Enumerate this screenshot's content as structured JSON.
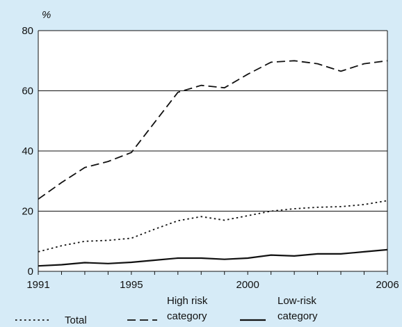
{
  "chart_data": {
    "type": "line",
    "ylabel": "%",
    "ylim": [
      0,
      80
    ],
    "yticks": [
      0,
      20,
      40,
      60,
      80
    ],
    "xlim": [
      1991,
      2006
    ],
    "xticks": [
      1991,
      1995,
      2000,
      2006
    ],
    "grid": true,
    "legend_placement": "bottom",
    "series": [
      {
        "name": "Total",
        "style": "dotted",
        "x": [
          1991,
          1992,
          1993,
          1994,
          1995,
          1996,
          1997,
          1998,
          1999,
          2000,
          2001,
          2002,
          2003,
          2004,
          2005,
          2006
        ],
        "values": [
          6.5,
          8.5,
          10,
          10.3,
          11,
          14,
          16.8,
          18.2,
          17,
          18.5,
          20,
          20.8,
          21.3,
          21.5,
          22.2,
          23.5
        ]
      },
      {
        "name": "High risk category",
        "label_lines": [
          "High risk",
          "category"
        ],
        "style": "dashed",
        "x": [
          1991,
          1992,
          1993,
          1994,
          1995,
          1996,
          1997,
          1998,
          1999,
          2000,
          2001,
          2002,
          2003,
          2004,
          2005,
          2006
        ],
        "values": [
          24,
          29.5,
          34.5,
          36.5,
          39.5,
          49.5,
          59.5,
          61.8,
          61,
          65.5,
          69.5,
          70,
          69,
          66.5,
          69,
          70
        ]
      },
      {
        "name": "Low-risk category",
        "label_lines": [
          "Low-risk",
          "category"
        ],
        "style": "solid",
        "x": [
          1991,
          1992,
          1993,
          1994,
          1995,
          1996,
          1997,
          1998,
          1999,
          2000,
          2001,
          2002,
          2003,
          2004,
          2005,
          2006
        ],
        "values": [
          1.8,
          2.2,
          2.9,
          2.6,
          3.0,
          3.7,
          4.4,
          4.4,
          4.0,
          4.4,
          5.4,
          5.1,
          5.8,
          5.8,
          6.5,
          7.2
        ]
      }
    ]
  }
}
